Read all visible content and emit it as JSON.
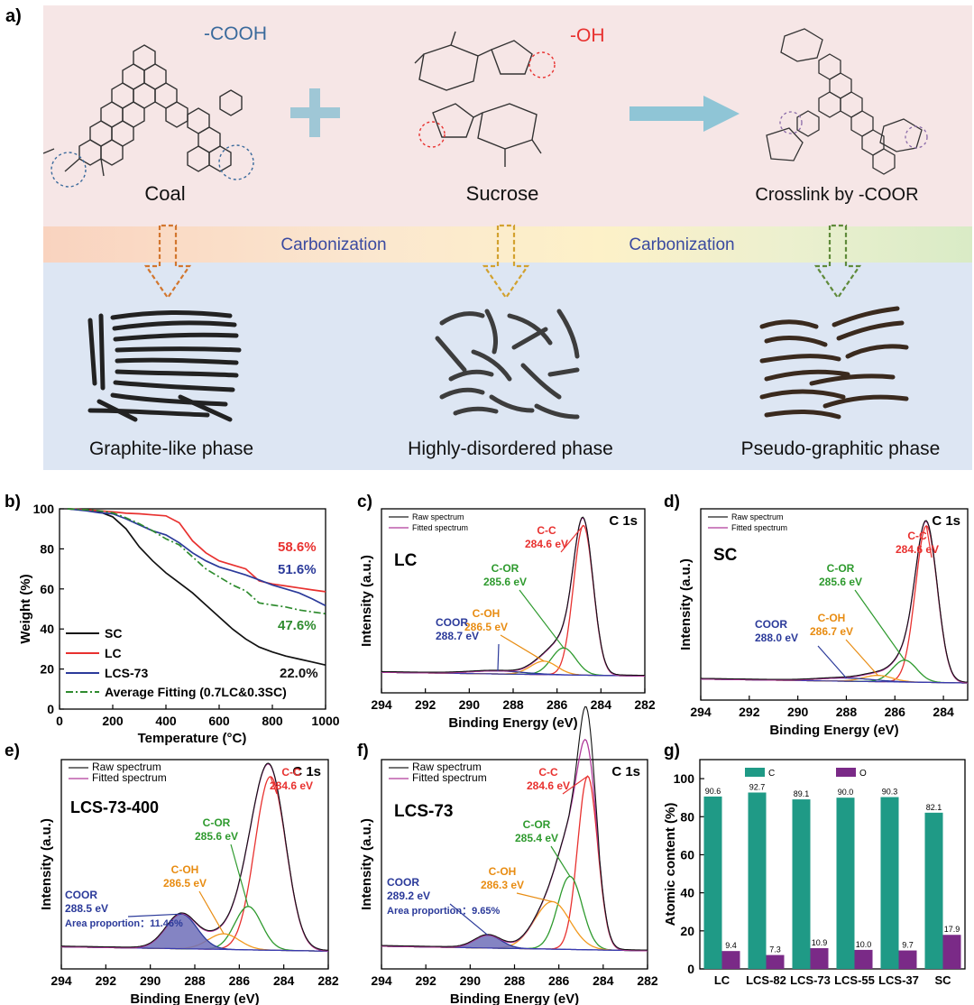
{
  "panel_a": {
    "label": "a)",
    "annotations": {
      "cooh": "-COOH",
      "oh": "-OH"
    },
    "sources": [
      {
        "name": "Coal",
        "phase": "Graphite-like phase"
      },
      {
        "name": "Sucrose",
        "phase": "Highly-disordered phase"
      },
      {
        "name": "Crosslink by -COOR",
        "phase": "Pseudo-graphitic phase"
      }
    ],
    "process": [
      "Carbonization",
      "Carbonization"
    ],
    "colors": {
      "top_bg": "#f6e6e6",
      "bottom_bg": "#dde6f3",
      "cooh": "#3a6a9c",
      "oh": "#e8312f",
      "arrow": "#8fc5d6",
      "process_text": "#3a4aa0"
    }
  },
  "chart_data": [
    {
      "panel": "b)",
      "type": "line",
      "xlabel": "Temperature (°C)",
      "ylabel": "Weight (%)",
      "xlim": [
        0,
        1000
      ],
      "ylim": [
        0,
        100
      ],
      "xticks": [
        "0",
        "200",
        "400",
        "600",
        "800",
        "1000"
      ],
      "yticks": [
        "0",
        "20",
        "40",
        "60",
        "80",
        "100"
      ],
      "legend": "bottom-left",
      "series": [
        {
          "name": "SC",
          "color": "#111111",
          "style": "solid",
          "x": [
            30,
            100,
            150,
            200,
            250,
            300,
            350,
            400,
            450,
            500,
            550,
            600,
            650,
            700,
            750,
            800,
            850,
            900,
            950,
            1000
          ],
          "y": [
            100,
            99.5,
            98.5,
            96,
            90,
            81,
            74,
            68,
            63,
            58,
            52,
            46,
            40,
            35,
            31,
            28.5,
            26.5,
            25,
            23.5,
            22.0
          ]
        },
        {
          "name": "LC",
          "color": "#e8312f",
          "style": "solid",
          "x": [
            30,
            100,
            150,
            200,
            250,
            300,
            350,
            400,
            450,
            500,
            550,
            600,
            650,
            700,
            750,
            800,
            850,
            900,
            950,
            1000
          ],
          "y": [
            100,
            99.5,
            99,
            98.5,
            97.8,
            97.5,
            97,
            96.5,
            93,
            84,
            78,
            74,
            72,
            70,
            64,
            62.5,
            61.5,
            60.5,
            59.5,
            58.6
          ]
        },
        {
          "name": "LCS-73",
          "color": "#2b3a9a",
          "style": "solid",
          "x": [
            30,
            100,
            150,
            200,
            250,
            300,
            350,
            400,
            450,
            500,
            550,
            600,
            650,
            700,
            750,
            800,
            850,
            900,
            950,
            1000
          ],
          "y": [
            100,
            99,
            98,
            97.5,
            95,
            92,
            89,
            87,
            83,
            78,
            74,
            71,
            69,
            67,
            64.5,
            62,
            60,
            58,
            55,
            51.6
          ]
        },
        {
          "name": "Average Fitting (0.7LC&0.3SC)",
          "color": "#2e8b2e",
          "style": "dashdot",
          "x": [
            30,
            100,
            150,
            200,
            250,
            300,
            350,
            400,
            450,
            500,
            550,
            600,
            650,
            700,
            750,
            800,
            850,
            900,
            950,
            1000
          ],
          "y": [
            100,
            99.5,
            99,
            98,
            95.5,
            92.5,
            89,
            85,
            82,
            76,
            70,
            66,
            62,
            59,
            53,
            52,
            51,
            49.5,
            48.5,
            47.6
          ]
        }
      ],
      "annotations": [
        {
          "text": "58.6%",
          "color": "#e8312f"
        },
        {
          "text": "51.6%",
          "color": "#2b3a9a"
        },
        {
          "text": "47.6%",
          "color": "#2e8b2e"
        },
        {
          "text": "22.0%",
          "color": "#111111"
        }
      ]
    },
    {
      "panel": "c)",
      "type": "line",
      "sample": "LC",
      "corner": "C 1s",
      "xlabel": "Binding Energy (eV)",
      "ylabel": "Intensity (a.u.)",
      "xlim": [
        294,
        282
      ],
      "xticks": [
        "294",
        "292",
        "290",
        "288",
        "286",
        "284",
        "282"
      ],
      "legend_entries": [
        "Raw spectrum",
        "Fitted spectrum"
      ],
      "peaks": [
        {
          "name": "C-C",
          "energy": "284.6 eV",
          "center": 284.8,
          "width": 0.45,
          "height": 100,
          "color": "#e8312f"
        },
        {
          "name": "C-OR",
          "energy": "285.6 eV",
          "center": 285.7,
          "width": 0.55,
          "height": 18,
          "color": "#2e9a2e"
        },
        {
          "name": "C-OH",
          "energy": "286.5 eV",
          "center": 286.6,
          "width": 0.6,
          "height": 9,
          "color": "#f29a1e"
        },
        {
          "name": "COOR",
          "energy": "288.7 eV",
          "center": 288.7,
          "width": 1.2,
          "height": 2,
          "color": "#2b3a9a"
        }
      ]
    },
    {
      "panel": "d)",
      "type": "line",
      "sample": "SC",
      "corner": "C 1s",
      "xlabel": "Binding Energy (eV)",
      "ylabel": "Intensity (a.u.)",
      "xlim": [
        294,
        283
      ],
      "xticks": [
        "294",
        "292",
        "290",
        "288",
        "286",
        "284"
      ],
      "legend_entries": [
        "Raw spectrum",
        "Fitted spectrum"
      ],
      "peaks": [
        {
          "name": "C-C",
          "energy": "284.6 eV",
          "center": 284.7,
          "width": 0.45,
          "height": 100,
          "color": "#e8312f"
        },
        {
          "name": "C-OR",
          "energy": "285.6 eV",
          "center": 285.6,
          "width": 0.5,
          "height": 14,
          "color": "#2e9a2e"
        },
        {
          "name": "C-OH",
          "energy": "286.7 eV",
          "center": 286.7,
          "width": 0.6,
          "height": 4,
          "color": "#f29a1e"
        },
        {
          "name": "COOR",
          "energy": "288.0 eV",
          "center": 288.0,
          "width": 1.1,
          "height": 2,
          "color": "#2b3a9a"
        }
      ]
    },
    {
      "panel": "e)",
      "type": "line",
      "sample": "LCS-73-400",
      "corner": "C 1s",
      "xlabel": "Binding Energy (eV)",
      "ylabel": "Intensity (a.u.)",
      "xlim": [
        294,
        282
      ],
      "xticks": [
        "294",
        "292",
        "290",
        "288",
        "286",
        "284",
        "282"
      ],
      "legend_entries": [
        "Raw spectrum",
        "Fitted spectrum"
      ],
      "area_proportion": "Area proportion：11.46%",
      "peaks": [
        {
          "name": "C-C",
          "energy": "284.6 eV",
          "center": 284.6,
          "width": 0.7,
          "height": 100,
          "color": "#e8312f"
        },
        {
          "name": "C-OR",
          "energy": "285.6 eV",
          "center": 285.6,
          "width": 0.6,
          "height": 25,
          "color": "#2e9a2e"
        },
        {
          "name": "C-OH",
          "energy": "286.5 eV",
          "center": 286.7,
          "width": 0.7,
          "height": 9,
          "color": "#f29a1e"
        },
        {
          "name": "COOR",
          "energy": "288.5 eV",
          "center": 288.6,
          "width": 0.7,
          "height": 20,
          "color": "#2b3a9a"
        }
      ]
    },
    {
      "panel": "f)",
      "type": "line",
      "sample": "LCS-73",
      "corner": "C 1s",
      "xlabel": "Binding Energy (eV)",
      "ylabel": "Intensity (a.u.)",
      "xlim": [
        294,
        282
      ],
      "xticks": [
        "294",
        "292",
        "290",
        "288",
        "286",
        "284",
        "282"
      ],
      "legend_entries": [
        "Raw spectrum",
        "Fitted spectrum"
      ],
      "area_proportion": "Area proportion：9.65%",
      "peaks": [
        {
          "name": "C-C",
          "energy": "284.6 eV",
          "center": 284.7,
          "width": 0.45,
          "height": 95,
          "color": "#e8312f"
        },
        {
          "name": "C-OR",
          "energy": "285.4 eV",
          "center": 285.5,
          "width": 0.55,
          "height": 40,
          "color": "#2e9a2e"
        },
        {
          "name": "C-OH",
          "energy": "286.3 eV",
          "center": 286.3,
          "width": 0.8,
          "height": 26,
          "color": "#f29a1e"
        },
        {
          "name": "COOR",
          "energy": "289.2 eV",
          "center": 289.2,
          "width": 0.6,
          "height": 7,
          "color": "#2b3a9a"
        }
      ]
    },
    {
      "panel": "g)",
      "type": "bar",
      "ylabel": "Atomic content (%)",
      "ylim": [
        0,
        110
      ],
      "yticks": [
        "0",
        "20",
        "40",
        "60",
        "80",
        "100"
      ],
      "categories": [
        "LC",
        "LCS-82",
        "LCS-73",
        "LCS-55",
        "LCS-37",
        "SC"
      ],
      "series": [
        {
          "name": "C",
          "color": "#1f9a86",
          "values": [
            90.6,
            92.7,
            89.1,
            90.0,
            90.3,
            82.1
          ],
          "labels": [
            "90.6",
            "92.7",
            "89.1",
            "90.0",
            "90.3",
            "82.1"
          ]
        },
        {
          "name": "O",
          "color": "#7a2a87",
          "values": [
            9.4,
            7.3,
            10.9,
            10.0,
            9.7,
            17.9
          ],
          "labels": [
            "9.4",
            "7.3",
            "10.9",
            "10.0",
            "9.7",
            "17.9"
          ]
        }
      ]
    }
  ]
}
